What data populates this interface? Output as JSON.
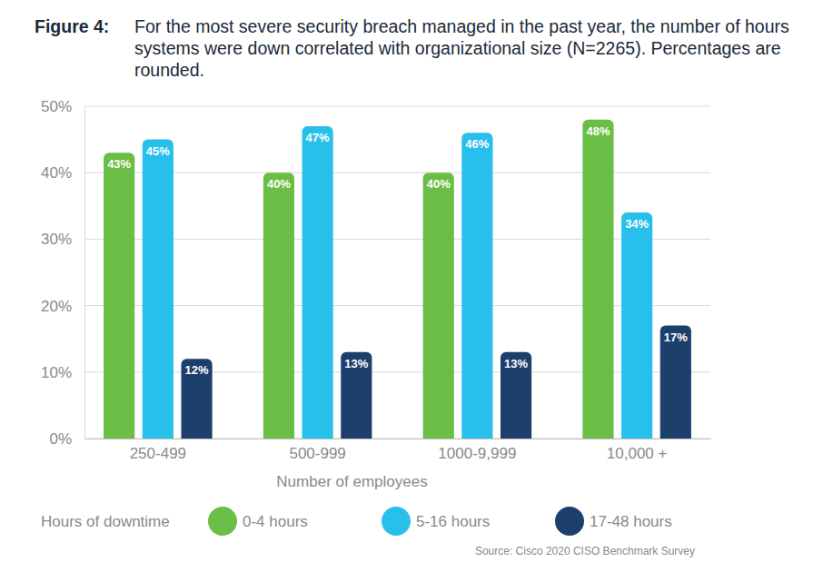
{
  "chart_data": {
    "type": "bar",
    "figure_label": "Figure 4:",
    "title": "For the most severe security breach managed in the past year, the number of hours systems were down correlated with organizational size (N=2265). Percentages are rounded.",
    "categories": [
      "250-499",
      "500-999",
      "1000-9,999",
      "10,000 +"
    ],
    "x_label": "Number of employees",
    "legend_title": "Hours of downtime",
    "series": [
      {
        "name": "0-4 hours",
        "color": "#6abd45",
        "values": [
          43,
          40,
          40,
          48
        ],
        "value_labels": [
          "43%",
          "40%",
          "40%",
          "48%"
        ]
      },
      {
        "name": "5-16 hours",
        "color": "#29bfeb",
        "values": [
          45,
          47,
          46,
          34
        ],
        "value_labels": [
          "45%",
          "47%",
          "46%",
          "34%"
        ]
      },
      {
        "name": "17-48 hours",
        "color": "#1d3f6b",
        "values": [
          12,
          13,
          13,
          17
        ],
        "value_labels": [
          "12%",
          "13%",
          "13%",
          "17%"
        ]
      }
    ],
    "ylim": [
      0,
      50
    ],
    "yticks": [
      {
        "value": 0,
        "label": "0%"
      },
      {
        "value": 10,
        "label": "10%"
      },
      {
        "value": 20,
        "label": "20%"
      },
      {
        "value": 30,
        "label": "30%"
      },
      {
        "value": 40,
        "label": "40%"
      },
      {
        "value": 50,
        "label": "50%"
      }
    ],
    "grid": true,
    "data_labels": true,
    "legend": "bottom",
    "source": "Source: Cisco 2020 CISO Benchmark Survey"
  }
}
